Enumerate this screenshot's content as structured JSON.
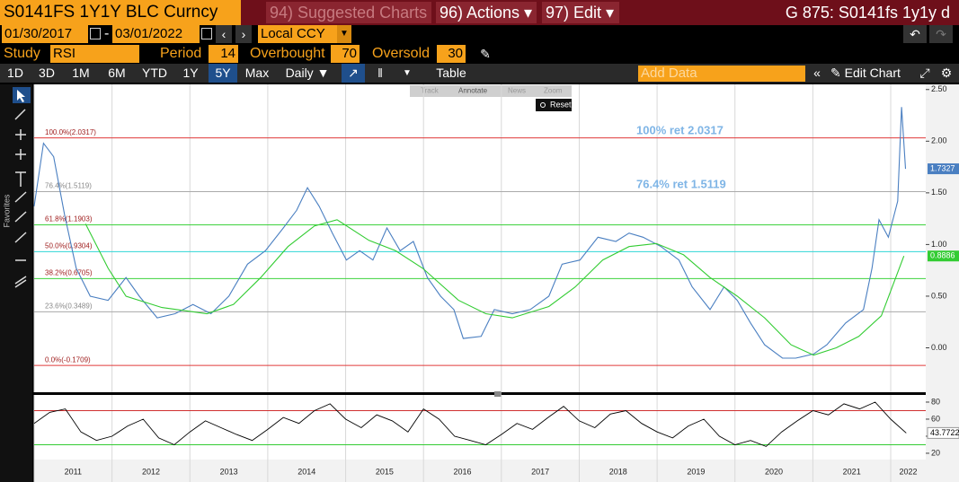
{
  "header": {
    "security": "S0141FS 1Y1Y BLC Curncy",
    "menus": [
      "94) Suggested Charts",
      "96) Actions ▾",
      "97) Edit ▾"
    ],
    "function": "G 875: S0141fs 1y1y d"
  },
  "controls": {
    "start_date": "01/30/2017",
    "separator": "-",
    "end_date": "03/01/2022",
    "currency": "Local CCY",
    "study_label": "Study",
    "study": "RSI",
    "period_label": "Period",
    "period": 14,
    "overbought_label": "Overbought",
    "overbought": 70,
    "oversold_label": "Oversold",
    "oversold": 30
  },
  "toolbar": {
    "ranges": [
      "1D",
      "3D",
      "1M",
      "6M",
      "YTD",
      "1Y",
      "5Y",
      "Max"
    ],
    "frequency": "Daily ▼",
    "table": "Table",
    "add_data": "Add Data",
    "edit_chart": "Edit Chart",
    "chart_tools": [
      "Track",
      "Annotate",
      "News",
      "Zoom"
    ],
    "reset": "Reset",
    "favorites": "Favorites"
  },
  "chart_data": [
    {
      "type": "line",
      "xlim": [
        2011.0,
        2022.45
      ],
      "ylim": [
        -0.43,
        2.55
      ],
      "yticks": [
        {
          "value": 2.5,
          "label": "2.50"
        },
        {
          "value": 2.0,
          "label": "2.00"
        },
        {
          "value": 1.5,
          "label": "1.50"
        },
        {
          "value": 1.0,
          "label": "1.00"
        },
        {
          "value": 0.5,
          "label": "0.50"
        },
        {
          "value": 0.0,
          "label": "0.00"
        }
      ],
      "levels": [
        {
          "label": "100.0%(2.0317)",
          "value": 2.0317,
          "color": "#e03a3a"
        },
        {
          "label": "76.4%(1.5119)",
          "value": 1.5119,
          "color": "#aaaaaa"
        },
        {
          "label": "61.8%(1.1903)",
          "value": 1.1903,
          "color": "#3ed23e"
        },
        {
          "label": "50.0%(0.9304)",
          "value": 0.9304,
          "color": "#2fd6d6"
        },
        {
          "label": "38.2%(0.6705)",
          "value": 0.6705,
          "color": "#3ed23e"
        },
        {
          "label": "23.6%(0.3489)",
          "value": 0.3489,
          "color": "#aaaaaa"
        },
        {
          "label": "0.0%(-0.1709)",
          "value": -0.1709,
          "color": "#e03a3a"
        }
      ],
      "annotations": [
        "100% ret 2.0317",
        "76.4% ret 1.5119"
      ],
      "series": [
        {
          "color": "#4a7fc1",
          "x": [
            2011.0,
            2011.12,
            2011.25,
            2011.39,
            2011.54,
            2011.72,
            2011.95,
            2012.18,
            2012.35,
            2012.58,
            2012.81,
            2013.04,
            2013.27,
            2013.5,
            2013.74,
            2013.97,
            2014.2,
            2014.37,
            2014.51,
            2014.66,
            2014.83,
            2015.01,
            2015.18,
            2015.35,
            2015.53,
            2015.7,
            2015.87,
            2016.05,
            2016.22,
            2016.39,
            2016.51,
            2016.74,
            2016.91,
            2017.14,
            2017.37,
            2017.61,
            2017.78,
            2018.01,
            2018.24,
            2018.47,
            2018.64,
            2018.82,
            2019.05,
            2019.28,
            2019.45,
            2019.68,
            2019.86,
            2020.03,
            2020.2,
            2020.38,
            2020.61,
            2020.78,
            2021.01,
            2021.18,
            2021.42,
            2021.65,
            2021.76,
            2021.85,
            2021.97,
            2022.09,
            2022.14,
            2022.19
          ],
          "values": [
            1.37,
            1.98,
            1.85,
            1.29,
            0.77,
            0.5,
            0.46,
            0.68,
            0.5,
            0.29,
            0.33,
            0.42,
            0.33,
            0.5,
            0.81,
            0.94,
            1.16,
            1.33,
            1.55,
            1.37,
            1.11,
            0.85,
            0.94,
            0.85,
            1.16,
            0.94,
            1.03,
            0.68,
            0.5,
            0.37,
            0.09,
            0.11,
            0.37,
            0.33,
            0.37,
            0.5,
            0.81,
            0.85,
            1.07,
            1.03,
            1.11,
            1.07,
            0.98,
            0.85,
            0.59,
            0.37,
            0.59,
            0.46,
            0.24,
            0.03,
            -0.1,
            -0.1,
            -0.06,
            0.03,
            0.24,
            0.37,
            0.77,
            1.24,
            1.07,
            1.42,
            2.33,
            1.7327
          ]
        },
        {
          "color": "#33cc33",
          "x": [
            2011.66,
            2011.95,
            2012.18,
            2012.64,
            2013.22,
            2013.56,
            2013.91,
            2014.26,
            2014.6,
            2014.89,
            2015.3,
            2015.64,
            2015.99,
            2016.45,
            2016.8,
            2017.14,
            2017.61,
            2017.95,
            2018.3,
            2018.64,
            2018.99,
            2019.34,
            2019.68,
            2020.03,
            2020.38,
            2020.72,
            2021.01,
            2021.3,
            2021.59,
            2021.88,
            2022.17
          ],
          "values": [
            1.2,
            0.77,
            0.5,
            0.39,
            0.33,
            0.42,
            0.68,
            0.98,
            1.18,
            1.24,
            1.04,
            0.94,
            0.77,
            0.46,
            0.33,
            0.29,
            0.4,
            0.59,
            0.85,
            0.98,
            1.01,
            0.9,
            0.68,
            0.5,
            0.29,
            0.03,
            -0.07,
            0.0,
            0.11,
            0.31,
            0.8886
          ]
        }
      ]
    },
    {
      "type": "line",
      "xlim": [
        2011.0,
        2022.45
      ],
      "ylim": [
        12.6,
        88.4
      ],
      "yticks": [
        80,
        60,
        40,
        20
      ],
      "xticks": [
        2011,
        2012,
        2013,
        2014,
        2015,
        2016,
        2017,
        2018,
        2019,
        2020,
        2021,
        2022
      ],
      "series": [
        {
          "color": "#000000",
          "x": [
            2011.0,
            2011.2,
            2011.4,
            2011.6,
            2011.8,
            2012.0,
            2012.2,
            2012.4,
            2012.6,
            2012.8,
            2013.0,
            2013.2,
            2013.4,
            2013.6,
            2013.8,
            2014.0,
            2014.2,
            2014.4,
            2014.6,
            2014.8,
            2015.0,
            2015.2,
            2015.4,
            2015.6,
            2015.8,
            2016.0,
            2016.2,
            2016.4,
            2016.6,
            2016.8,
            2017.0,
            2017.2,
            2017.4,
            2017.6,
            2017.8,
            2018.0,
            2018.2,
            2018.4,
            2018.6,
            2018.8,
            2019.0,
            2019.2,
            2019.4,
            2019.6,
            2019.8,
            2020.0,
            2020.2,
            2020.4,
            2020.6,
            2020.8,
            2021.0,
            2021.2,
            2021.4,
            2021.6,
            2021.8,
            2022.0,
            2022.2
          ],
          "values": [
            55,
            68,
            72,
            45,
            35,
            40,
            52,
            60,
            38,
            30,
            45,
            58,
            50,
            42,
            35,
            48,
            62,
            55,
            70,
            78,
            60,
            50,
            65,
            58,
            45,
            72,
            60,
            40,
            35,
            30,
            42,
            55,
            48,
            62,
            75,
            58,
            50,
            66,
            70,
            55,
            45,
            38,
            52,
            60,
            40,
            30,
            35,
            28,
            45,
            58,
            70,
            65,
            78,
            72,
            80,
            60,
            43.7722
          ]
        }
      ]
    }
  ]
}
